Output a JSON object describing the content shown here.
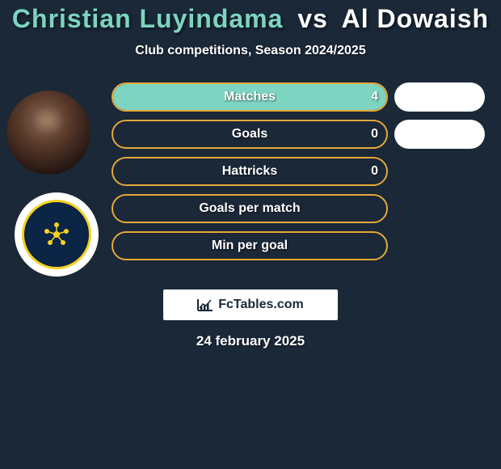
{
  "title": {
    "player1": "Christian Luyindama",
    "vs": "vs",
    "player2": "Al Dowaish",
    "player1_color": "#7dd4c0",
    "player2_color": "#ffffff"
  },
  "subtitle": "Club competitions, Season 2024/2025",
  "bars_region": {
    "border_color": "#e5a838",
    "fill_color_player1": "#7dd4c0",
    "text_color": "#ffffff"
  },
  "stats": [
    {
      "label": "Matches",
      "value_left": "4",
      "fill_pct": 100,
      "right_pill": true
    },
    {
      "label": "Goals",
      "value_left": "0",
      "fill_pct": 0,
      "right_pill": true
    },
    {
      "label": "Hattricks",
      "value_left": "0",
      "fill_pct": 0,
      "right_pill": false
    },
    {
      "label": "Goals per match",
      "value_left": "",
      "fill_pct": 0,
      "right_pill": false
    },
    {
      "label": "Min per goal",
      "value_left": "",
      "fill_pct": 0,
      "right_pill": false
    }
  ],
  "brand": "FcTables.com",
  "date": "24 february 2025",
  "background_color": "#1a2838",
  "badge": {
    "outer_bg": "#ffffff",
    "inner_bg": "#0a2545",
    "ring_color": "#f5d020",
    "star_color": "#f5d020"
  }
}
